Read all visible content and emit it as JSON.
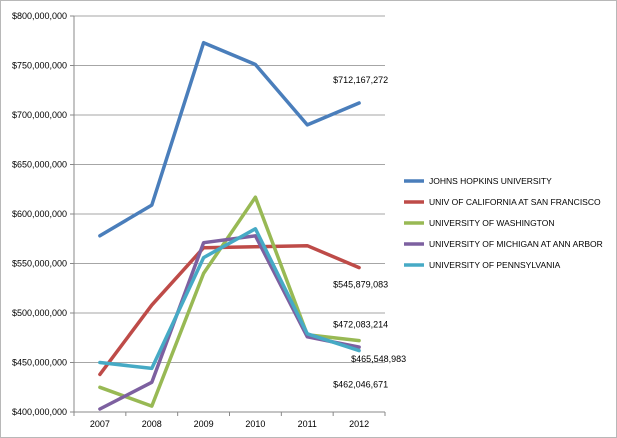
{
  "chart_data": {
    "type": "line",
    "categories": [
      "2007",
      "2008",
      "2009",
      "2010",
      "2011",
      "2012"
    ],
    "ylim": [
      400000000,
      800000000
    ],
    "yticks": [
      400000000,
      450000000,
      500000000,
      550000000,
      600000000,
      650000000,
      700000000,
      750000000,
      800000000
    ],
    "ytick_labels": [
      "$400,000,000",
      "$450,000,000",
      "$500,000,000",
      "$550,000,000",
      "$600,000,000",
      "$650,000,000",
      "$700,000,000",
      "$750,000,000",
      "$800,000,000"
    ],
    "grid": "horizontal",
    "legend_position": "right",
    "series": [
      {
        "name": "JOHNS HOPKINS UNIVERSITY",
        "color": "#4a7ebb",
        "values": [
          578000000,
          609000000,
          773000000,
          751000000,
          690000000,
          712167272
        ]
      },
      {
        "name": "UNIV OF CALIFORNIA AT SAN FRANCISCO",
        "color": "#be4b48",
        "values": [
          438000000,
          508000000,
          566000000,
          567000000,
          568000000,
          545879083
        ]
      },
      {
        "name": "UNIVERSITY OF WASHINGTON",
        "color": "#98b954",
        "values": [
          425000000,
          406000000,
          540000000,
          617000000,
          478000000,
          472083214
        ]
      },
      {
        "name": "UNIVERSITY OF MICHIGAN AT ANN ARBOR",
        "color": "#7d60a0",
        "values": [
          403000000,
          430000000,
          571000000,
          578000000,
          476000000,
          465548983
        ]
      },
      {
        "name": "UNIVERSITY OF PENNSYLVANIA",
        "color": "#46aac5",
        "values": [
          450000000,
          444000000,
          556000000,
          585000000,
          479000000,
          462046671
        ]
      }
    ],
    "annotations": [
      {
        "series": 0,
        "category": "2012",
        "text": "$712,167,272"
      },
      {
        "series": 1,
        "category": "2012",
        "text": "$545,879,083"
      },
      {
        "series": 2,
        "category": "2012",
        "text": "$472,083,214"
      },
      {
        "series": 3,
        "category": "2012",
        "text": "$465,548,983"
      },
      {
        "series": 4,
        "category": "2012",
        "text": "$462,046,671"
      }
    ]
  }
}
